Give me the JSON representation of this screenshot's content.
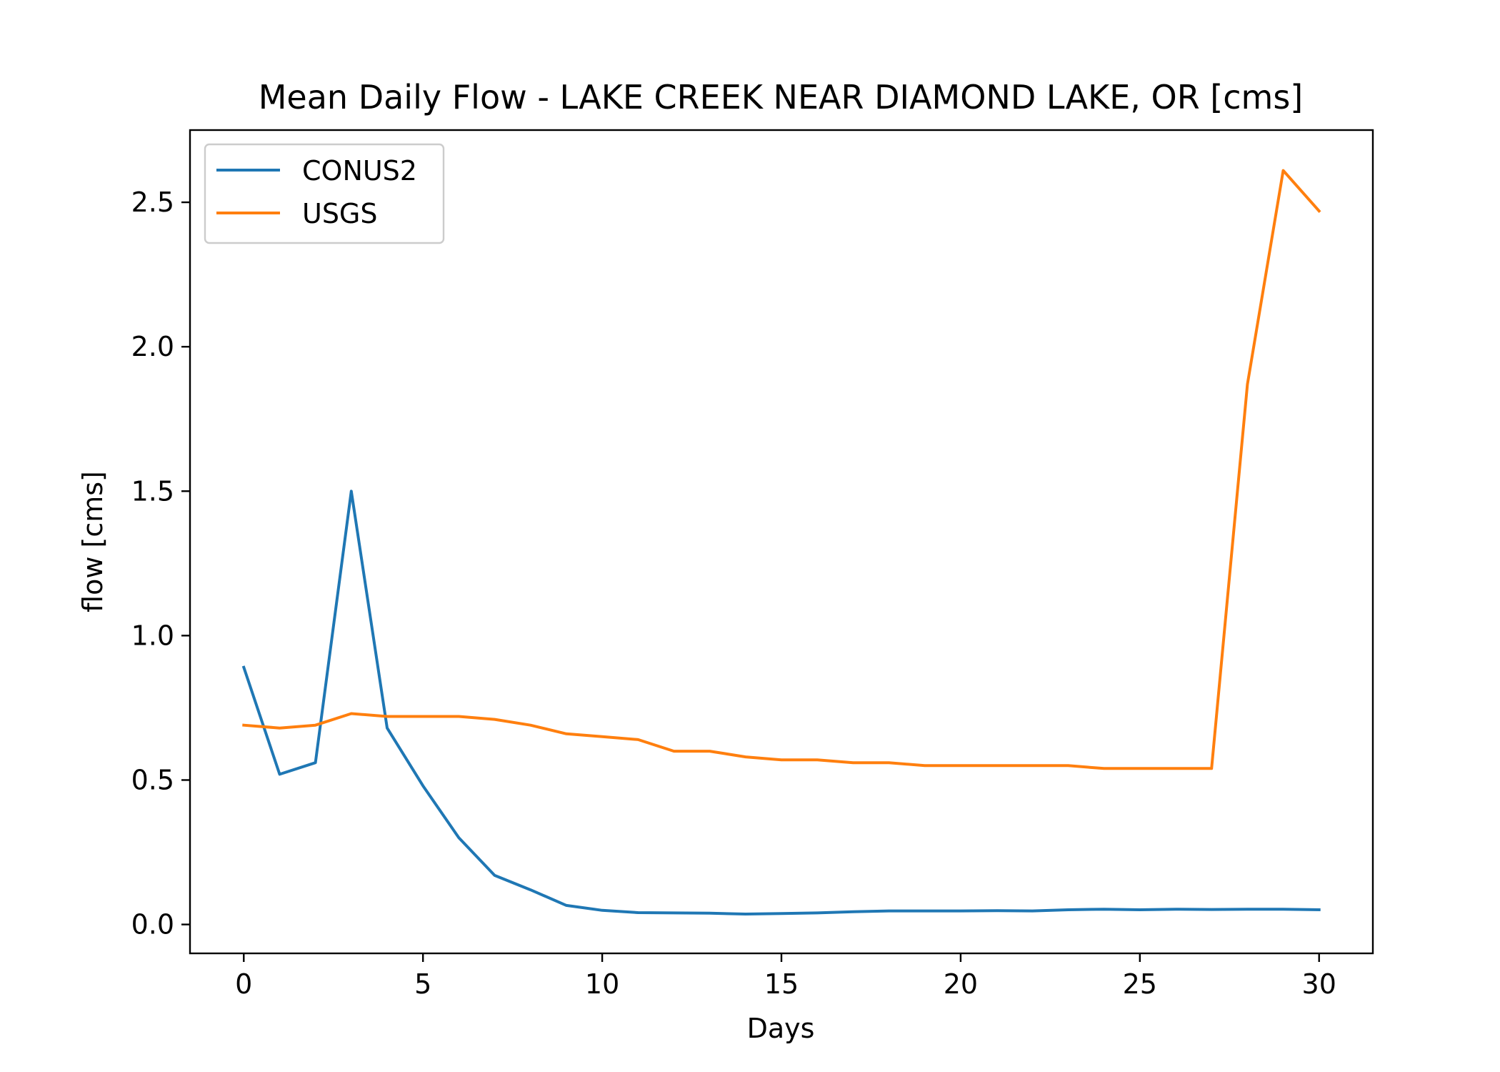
{
  "chart_data": {
    "type": "line",
    "title": "Mean Daily Flow - LAKE CREEK NEAR DIAMOND LAKE, OR [cms]",
    "xlabel": "Days",
    "ylabel": "flow [cms]",
    "xlim": [
      -1.5,
      31.5
    ],
    "ylim": [
      -0.1,
      2.75
    ],
    "xticks": [
      0,
      5,
      10,
      15,
      20,
      25,
      30
    ],
    "yticks": [
      0.0,
      0.5,
      1.0,
      1.5,
      2.0,
      2.5
    ],
    "xtick_labels": [
      "0",
      "5",
      "10",
      "15",
      "20",
      "25",
      "30"
    ],
    "ytick_labels": [
      "0.0",
      "0.5",
      "1.0",
      "1.5",
      "2.0",
      "2.5"
    ],
    "grid": false,
    "legend_position": "top-left",
    "x": [
      0,
      1,
      2,
      3,
      4,
      5,
      6,
      7,
      8,
      9,
      10,
      11,
      12,
      13,
      14,
      15,
      16,
      17,
      18,
      19,
      20,
      21,
      22,
      23,
      24,
      25,
      26,
      27,
      28,
      29,
      30
    ],
    "series": [
      {
        "name": "CONUS2",
        "color": "#1f77b4",
        "values": [
          0.89,
          0.52,
          0.56,
          1.5,
          0.68,
          0.48,
          0.3,
          0.17,
          0.12,
          0.066,
          0.049,
          0.041,
          0.04,
          0.039,
          0.036,
          0.038,
          0.04,
          0.044,
          0.047,
          0.047,
          0.047,
          0.048,
          0.047,
          0.051,
          0.053,
          0.051,
          0.053,
          0.052,
          0.053,
          0.053,
          0.051
        ]
      },
      {
        "name": "USGS",
        "color": "#ff7f0e",
        "values": [
          0.69,
          0.68,
          0.69,
          0.73,
          0.72,
          0.72,
          0.72,
          0.71,
          0.69,
          0.66,
          0.65,
          0.64,
          0.6,
          0.6,
          0.58,
          0.57,
          0.57,
          0.56,
          0.56,
          0.55,
          0.55,
          0.55,
          0.55,
          0.55,
          0.54,
          0.54,
          0.54,
          0.54,
          1.87,
          2.61,
          2.47
        ]
      }
    ]
  }
}
